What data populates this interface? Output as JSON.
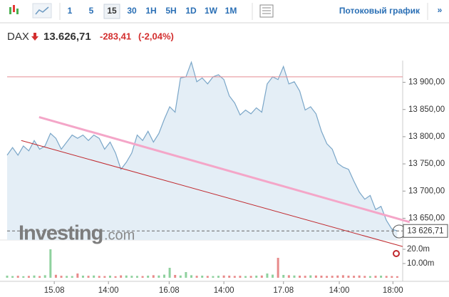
{
  "toolbar": {
    "intervals": [
      "1",
      "5",
      "15",
      "30",
      "1H",
      "5H",
      "1D",
      "1W",
      "1M"
    ],
    "selected": 2,
    "streaming": "Потоковый график",
    "more": "»"
  },
  "quote": {
    "symbol": "DAX",
    "price": "13.626,71",
    "change": "-283,41",
    "change_pct": "(-2,04%)"
  },
  "watermark": [
    "Investing",
    ".com"
  ],
  "chart_data": {
    "type": "line",
    "series": [
      {
        "name": "DAX",
        "color": "#7aa6c8",
        "fill": "#e4eef6",
        "values": [
          13766,
          13780,
          13766,
          13783,
          13774,
          13793,
          13777,
          13783,
          13806,
          13797,
          13777,
          13790,
          13803,
          13797,
          13803,
          13793,
          13803,
          13797,
          13777,
          13790,
          13770,
          13740,
          13753,
          13770,
          13803,
          13793,
          13810,
          13790,
          13806,
          13832,
          13855,
          13845,
          13908,
          13910,
          13937,
          13901,
          13908,
          13897,
          13910,
          13914,
          13905,
          13875,
          13862,
          13840,
          13849,
          13842,
          13853,
          13845,
          13897,
          13910,
          13905,
          13929,
          13897,
          13901,
          13884,
          13849,
          13855,
          13842,
          13810,
          13787,
          13777,
          13751,
          13744,
          13740,
          13718,
          13698,
          13685,
          13692,
          13666,
          13672,
          13646,
          13630,
          13626.71
        ]
      }
    ],
    "last_price_label": "13 626,71",
    "xlim": [
      0,
      73
    ],
    "xticks": [
      {
        "value": 8.7,
        "label": "15.08"
      },
      {
        "value": 18.7,
        "label": "14:00"
      },
      {
        "value": 29.9,
        "label": "16.08"
      },
      {
        "value": 40,
        "label": "14:00"
      },
      {
        "value": 51,
        "label": "17.08"
      },
      {
        "value": 61.3,
        "label": "14:00"
      },
      {
        "value": 71.2,
        "label": "18:00"
      }
    ],
    "ylim": [
      13610,
      13940
    ],
    "yticks": [
      {
        "value": 13900,
        "label": "13 900,00"
      },
      {
        "value": 13850,
        "label": "13 850,00"
      },
      {
        "value": 13800,
        "label": "13 800,00"
      },
      {
        "value": 13750,
        "label": "13 750,00"
      },
      {
        "value": 13700,
        "label": "13 700,00"
      },
      {
        "value": 13650,
        "label": "13 650,00"
      }
    ],
    "trend_lines": [
      {
        "color": "#f4a6c8",
        "width": 3,
        "x": [
          5.9,
          74.3
        ],
        "values": [
          13836,
          13643
        ]
      },
      {
        "color": "#c0282d",
        "width": 1,
        "x": [
          2.6,
          73
        ],
        "values": [
          13793,
          13598
        ]
      },
      {
        "color": "#e58a90",
        "width": 1,
        "x": [
          0,
          73
        ],
        "values": [
          13910,
          13910
        ]
      }
    ],
    "volume": {
      "up_color": "#8fd19e",
      "down_color": "#e88a8a",
      "ylim": [
        0,
        26.5
      ],
      "yticks": [
        {
          "value": 20,
          "label": "20.0m"
        },
        {
          "value": 10,
          "label": "10.00m"
        }
      ],
      "values": [
        1.5,
        1.2,
        1.4,
        1.1,
        1.3,
        1.6,
        1.2,
        1.8,
        20,
        2.1,
        1.4,
        1.3,
        1.2,
        3,
        1.5,
        1.4,
        1.6,
        1.3,
        1.2,
        1.5,
        1.1,
        1.7,
        1.6,
        1.4,
        1.3,
        1.2,
        1.5,
        1.8,
        1.6,
        2.2,
        7,
        2,
        1.6,
        4,
        1.8,
        1.4,
        1.5,
        1.3,
        1.2,
        1.4,
        1.6,
        1.5,
        1.3,
        1.4,
        1.2,
        1.3,
        1.5,
        1.6,
        3,
        2.2,
        14,
        2,
        1.8,
        1.6,
        1.5,
        1.4,
        1.7,
        1.6,
        1.5,
        1.3,
        1.4,
        1.6,
        1.8,
        1.5,
        1.4,
        1.6,
        1.3,
        1.2,
        1.4,
        1.5,
        1.3,
        1.2,
        1.1
      ]
    }
  }
}
